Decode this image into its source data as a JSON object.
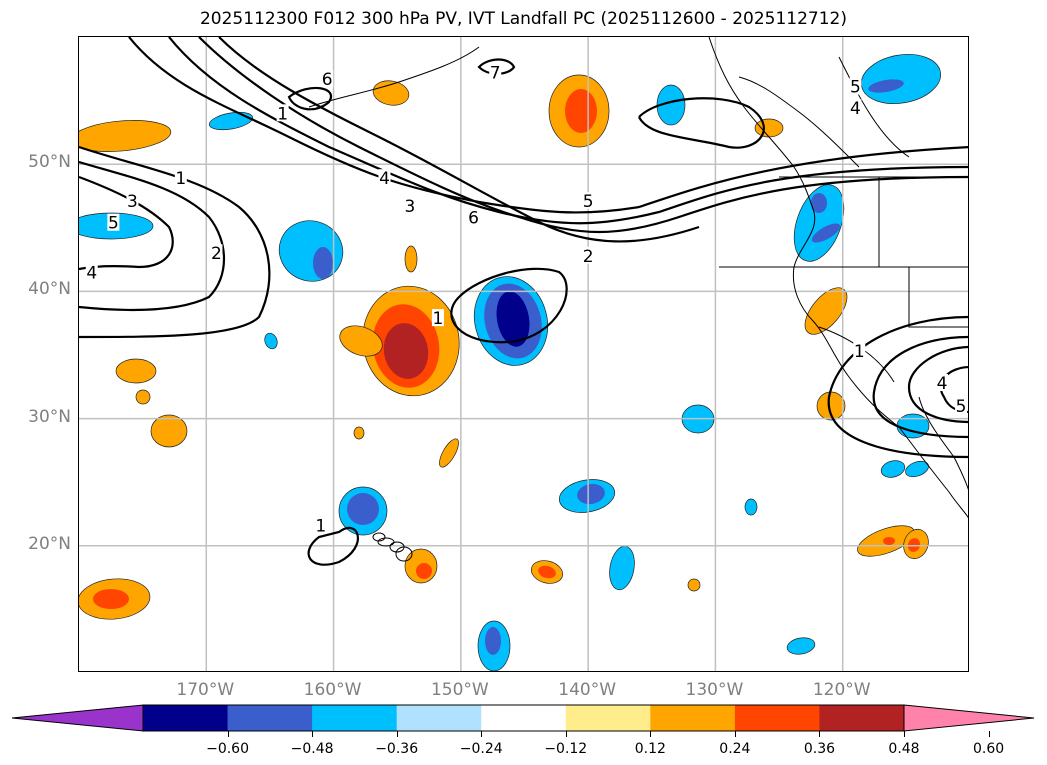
{
  "title": "2025112300 F012 300 hPa PV, IVT Landfall PC (2025112600 - 2025112712)",
  "map": {
    "lat_range": [
      10,
      60
    ],
    "lon_range": [
      -180,
      -110
    ],
    "lat_ticks": [
      {
        "value": 50,
        "label": "50°N"
      },
      {
        "value": 40,
        "label": "40°N"
      },
      {
        "value": 30,
        "label": "30°N"
      },
      {
        "value": 20,
        "label": "20°N"
      }
    ],
    "lon_ticks": [
      {
        "value": -170,
        "label": "170°W"
      },
      {
        "value": -160,
        "label": "160°W"
      },
      {
        "value": -150,
        "label": "150°W"
      },
      {
        "value": -140,
        "label": "140°W"
      },
      {
        "value": -130,
        "label": "130°W"
      },
      {
        "value": -120,
        "label": "120°W"
      }
    ],
    "grid_color": "#c0c0c0",
    "contour_labels": [
      {
        "text": "6",
        "lon": -160.5,
        "lat": 56.7
      },
      {
        "text": "7",
        "lon": -147.3,
        "lat": 57.2
      },
      {
        "text": "1",
        "lon": -164.0,
        "lat": 54.0
      },
      {
        "text": "5",
        "lon": -119.0,
        "lat": 56.1
      },
      {
        "text": "4",
        "lon": -119.0,
        "lat": 54.4
      },
      {
        "text": "4",
        "lon": -156.0,
        "lat": 48.9
      },
      {
        "text": "3",
        "lon": -154.0,
        "lat": 46.7
      },
      {
        "text": "6",
        "lon": -149.0,
        "lat": 45.8
      },
      {
        "text": "5",
        "lon": -140.0,
        "lat": 47.1
      },
      {
        "text": "2",
        "lon": -140.0,
        "lat": 42.8
      },
      {
        "text": "1",
        "lon": -172.0,
        "lat": 48.9
      },
      {
        "text": "3",
        "lon": -175.8,
        "lat": 47.1
      },
      {
        "text": "5",
        "lon": -177.3,
        "lat": 45.4
      },
      {
        "text": "2",
        "lon": -169.2,
        "lat": 43.0
      },
      {
        "text": "4",
        "lon": -179.0,
        "lat": 41.5
      },
      {
        "text": "1",
        "lon": -151.8,
        "lat": 37.9
      },
      {
        "text": "1",
        "lon": -118.7,
        "lat": 35.3
      },
      {
        "text": "4",
        "lon": -112.2,
        "lat": 32.8
      },
      {
        "text": "5",
        "lon": -110.7,
        "lat": 31.0
      },
      {
        "text": "1",
        "lon": -161.0,
        "lat": 21.6
      }
    ]
  },
  "colorbar": {
    "colors": [
      "#9933cc",
      "#00008b",
      "#3a5fcd",
      "#00bfff",
      "#b0e2ff",
      "#ffffff",
      "#ffec8b",
      "#ffa500",
      "#ff4500",
      "#b22222",
      "#ff82ab"
    ],
    "ticks": [
      "−0.60",
      "−0.48",
      "−0.36",
      "−0.24",
      "−0.12",
      "0.12",
      "0.24",
      "0.36",
      "0.48",
      "0.60"
    ]
  }
}
